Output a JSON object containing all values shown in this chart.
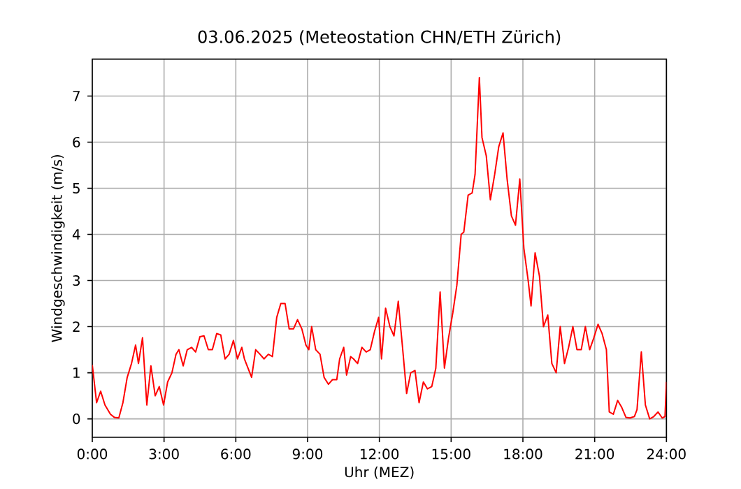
{
  "chart_data": {
    "type": "line",
    "title": "03.06.2025  (Meteostation CHN/ETH Zürich)",
    "xlabel": "Uhr (MEZ)",
    "ylabel": "Windgeschwindigkeit (m/s)",
    "xlim": [
      0,
      24
    ],
    "ylim": [
      -0.4,
      7.8
    ],
    "grid": true,
    "marker": "none",
    "line_style": "solid",
    "xticks": [
      {
        "value": 0,
        "label": "0:00"
      },
      {
        "value": 3,
        "label": "3:00"
      },
      {
        "value": 6,
        "label": "6:00"
      },
      {
        "value": 9,
        "label": "9:00"
      },
      {
        "value": 12,
        "label": "12:00"
      },
      {
        "value": 15,
        "label": "15:00"
      },
      {
        "value": 18,
        "label": "18:00"
      },
      {
        "value": 21,
        "label": "21:00"
      },
      {
        "value": 24,
        "label": "24:00"
      }
    ],
    "yticks": [
      0,
      1,
      2,
      3,
      4,
      5,
      6,
      7
    ],
    "series": [
      {
        "color": "#ff0000",
        "x": [
          0,
          0.18,
          0.35,
          0.53,
          0.76,
          0.93,
          1.11,
          1.28,
          1.46,
          1.64,
          1.81,
          1.93,
          2.1,
          2.28,
          2.45,
          2.63,
          2.8,
          2.98,
          3.15,
          3.33,
          3.5,
          3.62,
          3.8,
          3.97,
          4.15,
          4.32,
          4.5,
          4.67,
          4.85,
          5.02,
          5.2,
          5.37,
          5.55,
          5.72,
          5.9,
          6.07,
          6.25,
          6.36,
          6.66,
          6.83,
          7.01,
          7.18,
          7.36,
          7.53,
          7.71,
          7.88,
          8.06,
          8.23,
          8.41,
          8.58,
          8.76,
          8.93,
          9.05,
          9.17,
          9.34,
          9.52,
          9.69,
          9.87,
          10.04,
          10.22,
          10.34,
          10.51,
          10.63,
          10.8,
          10.92,
          11.09,
          11.27,
          11.45,
          11.62,
          11.8,
          11.97,
          12.09,
          12.26,
          12.44,
          12.61,
          12.79,
          12.96,
          13.14,
          13.31,
          13.49,
          13.66,
          13.84,
          14.01,
          14.19,
          14.36,
          14.54,
          14.72,
          14.89,
          15.07,
          15.24,
          15.42,
          15.53,
          15.71,
          15.88,
          16.0,
          16.18,
          16.29,
          16.47,
          16.64,
          16.82,
          16.99,
          17.17,
          17.34,
          17.52,
          17.69,
          17.87,
          18.04,
          18.22,
          18.34,
          18.51,
          18.69,
          18.86,
          19.04,
          19.21,
          19.39,
          19.56,
          19.74,
          19.91,
          20.09,
          20.26,
          20.44,
          20.61,
          20.79,
          20.96,
          21.14,
          21.31,
          21.49,
          21.61,
          21.78,
          21.96,
          22.13,
          22.31,
          22.48,
          22.66,
          22.77,
          22.95,
          23.12,
          23.3,
          23.47,
          23.65,
          23.82,
          23.94,
          24.0
        ],
        "values": [
          1.17,
          0.35,
          0.6,
          0.3,
          0.1,
          0.03,
          0.02,
          0.35,
          0.9,
          1.2,
          1.6,
          1.2,
          1.76,
          0.3,
          1.15,
          0.5,
          0.7,
          0.3,
          0.8,
          1.0,
          1.4,
          1.5,
          1.15,
          1.5,
          1.55,
          1.45,
          1.78,
          1.8,
          1.5,
          1.5,
          1.85,
          1.82,
          1.3,
          1.4,
          1.7,
          1.3,
          1.55,
          1.3,
          0.9,
          1.5,
          1.4,
          1.3,
          1.4,
          1.35,
          2.2,
          2.5,
          2.5,
          1.95,
          1.95,
          2.15,
          1.95,
          1.6,
          1.5,
          2.0,
          1.5,
          1.4,
          0.9,
          0.75,
          0.85,
          0.85,
          1.3,
          1.55,
          0.95,
          1.35,
          1.3,
          1.2,
          1.55,
          1.45,
          1.5,
          1.9,
          2.2,
          1.3,
          2.4,
          2.0,
          1.8,
          2.55,
          1.6,
          0.55,
          1.0,
          1.05,
          0.35,
          0.8,
          0.65,
          0.7,
          1.1,
          2.75,
          1.1,
          1.75,
          2.3,
          2.9,
          4.0,
          4.05,
          4.85,
          4.9,
          5.3,
          7.4,
          6.1,
          5.7,
          4.75,
          5.3,
          5.9,
          6.2,
          5.2,
          4.4,
          4.2,
          5.2,
          3.7,
          3.0,
          2.45,
          3.6,
          3.1,
          2.0,
          2.25,
          1.2,
          1.0,
          2.0,
          1.2,
          1.55,
          2.0,
          1.5,
          1.5,
          2.0,
          1.5,
          1.75,
          2.05,
          1.85,
          1.5,
          0.15,
          0.1,
          0.4,
          0.25,
          0.03,
          0.02,
          0.05,
          0.2,
          1.45,
          0.3,
          0.0,
          0.05,
          0.15,
          0.02,
          0.05,
          0.8
        ]
      }
    ]
  }
}
